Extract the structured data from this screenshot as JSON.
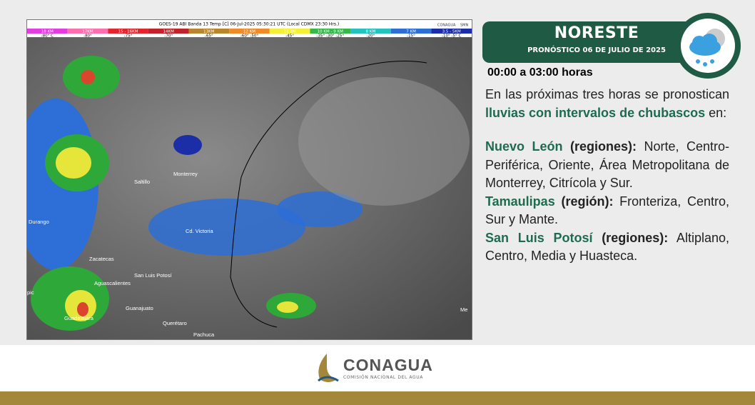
{
  "satellite": {
    "title": "GOES-19 ABI Banda 13 Temp [C] 06-Jul-2025 05:30:21 UTC (Local CDMX 23:30 Hrs.)",
    "logo": "CONAGUA",
    "logo2": "SMN",
    "legend": [
      {
        "km": "18 KM",
        "temp": "-80° C"
      },
      {
        "km": "17KM",
        "temp": "-80°"
      },
      {
        "km": "15 - 16KM",
        "temp": "-75°"
      },
      {
        "km": "14KM",
        "temp": "-70°"
      },
      {
        "km": "13KM",
        "temp": "-65°"
      },
      {
        "km": "12 KM",
        "temp": "-60° -50°"
      },
      {
        "km": "11 KM",
        "temp": "-45°"
      },
      {
        "km": "10 KM - 9 KM",
        "temp": "-35° -30° -25°"
      },
      {
        "km": "8 KM",
        "temp": "-20°"
      },
      {
        "km": "7 KM",
        "temp": "-15°"
      },
      {
        "km": "3.5 - 5KM",
        "temp": "-10° -5° C"
      }
    ],
    "cities": [
      "Monterrey",
      "Saltillo",
      "Durango",
      "Cd. Victoria",
      "Zacatecas",
      "San Luis Potosí",
      "Aguascalientes",
      "Guanajuato",
      "Guadalajara",
      "Querétaro",
      "Pachuca",
      "pic",
      "Me"
    ]
  },
  "panel": {
    "region": "NORESTE",
    "date": "PRONÓSTICO 06 DE JULIO DE 2025",
    "period": "00:00 a 03:00 horas",
    "intro": [
      "En las próximas tres horas se pronostican ",
      "lluvias con intervalos de chubascos",
      " en:"
    ],
    "regions": [
      {
        "name": "Nuevo León",
        "qualifier": " (regiones):",
        "text": " Norte, Centro-Periférica, Oriente, Área Metropolitana de Monterrey, Citrícola y Sur."
      },
      {
        "name": "Tamaulipas",
        "qualifier": " (región):",
        "text": " Fronteriza, Centro, Sur y Mante."
      },
      {
        "name": "San Luis Potosí",
        "qualifier": " (regiones):",
        "text": " Altiplano, Centro, Media y Huasteca."
      }
    ]
  },
  "footer": {
    "brand": "CONAGUA",
    "subtitle": "COMISIÓN NACIONAL DEL AGUA"
  }
}
